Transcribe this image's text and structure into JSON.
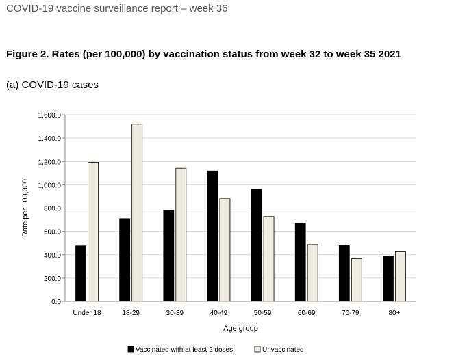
{
  "header": {
    "report_title": "COVID-19 vaccine surveillance report – week 36"
  },
  "figure": {
    "title": "Figure 2. Rates (per 100,000) by vaccination status from week 32 to week 35 2021",
    "panel_title": "(a) COVID-19 cases"
  },
  "chart_data": {
    "type": "bar",
    "title": "(a) COVID-19 cases",
    "xlabel": "Age group",
    "ylabel": "Rate per 100,000",
    "ylim": [
      0,
      1600
    ],
    "yticks": [
      "0.0",
      "200.0",
      "400.0",
      "600.0",
      "800.0",
      "1,000.0",
      "1,200.0",
      "1,400.0",
      "1,600.0"
    ],
    "categories": [
      "Under 18",
      "18-29",
      "30-39",
      "40-49",
      "50-59",
      "60-69",
      "70-79",
      "80+"
    ],
    "series": [
      {
        "name": "Vaccinated with at least 2 doses",
        "color": "#000000",
        "values": [
          476,
          710,
          782,
          1118,
          962,
          672,
          478,
          390
        ]
      },
      {
        "name": "Unvaccinated",
        "color": "#eeece1",
        "values": [
          1193,
          1519,
          1142,
          880,
          728,
          487,
          366,
          425
        ]
      }
    ],
    "legend": "bottom"
  }
}
